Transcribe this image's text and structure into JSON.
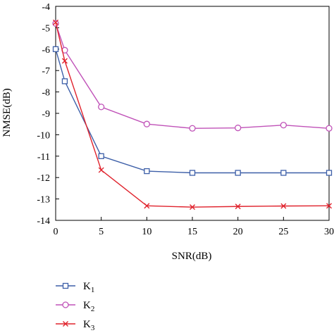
{
  "chart_data": {
    "type": "line",
    "title": "",
    "xlabel": "SNR(dB)",
    "ylabel": "NMSE(dB)",
    "xlim": [
      0,
      30
    ],
    "ylim": [
      -14,
      -4
    ],
    "xticks": [
      0,
      5,
      10,
      15,
      20,
      25,
      30
    ],
    "yticks": [
      -4,
      -5,
      -6,
      -7,
      -8,
      -9,
      -10,
      -11,
      -12,
      -13,
      -14
    ],
    "grid": false,
    "legend_position": "bottom-left",
    "series": [
      {
        "name": "K",
        "subscript": "1",
        "color": "#3d5fa8",
        "marker": "square",
        "x": [
          0,
          1,
          5,
          10,
          15,
          20,
          25,
          30
        ],
        "y": [
          -6.0,
          -7.5,
          -11.0,
          -11.7,
          -11.78,
          -11.78,
          -11.78,
          -11.78
        ]
      },
      {
        "name": "K",
        "subscript": "2",
        "color": "#c052b8",
        "marker": "circle",
        "x": [
          0,
          1,
          5,
          10,
          15,
          20,
          25,
          30
        ],
        "y": [
          -4.8,
          -6.05,
          -8.7,
          -9.5,
          -9.7,
          -9.68,
          -9.55,
          -9.7
        ]
      },
      {
        "name": "K",
        "subscript": "3",
        "color": "#e0232d",
        "marker": "x",
        "x": [
          0,
          1,
          5,
          10,
          15,
          20,
          25,
          30
        ],
        "y": [
          -4.75,
          -6.55,
          -11.65,
          -13.32,
          -13.38,
          -13.35,
          -13.33,
          -13.32
        ]
      }
    ]
  }
}
